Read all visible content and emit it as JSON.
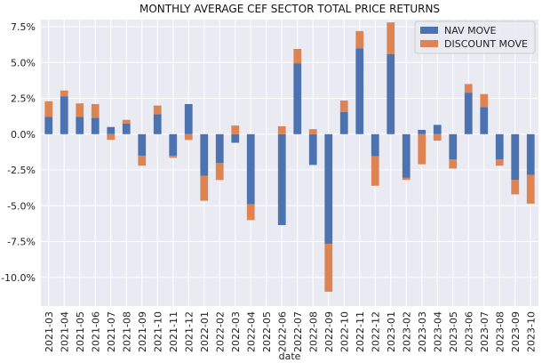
{
  "chart_data": {
    "type": "bar",
    "stacked": true,
    "title": "MONTHLY AVERAGE CEF SECTOR TOTAL PRICE RETURNS",
    "xlabel": "date",
    "ylabel": "",
    "ylim": [
      -12.0,
      8.0
    ],
    "yticks": [
      7.5,
      5.0,
      2.5,
      0.0,
      -2.5,
      -5.0,
      -7.5,
      -10.0
    ],
    "ytick_labels": [
      "7.5%",
      "5.0%",
      "2.5%",
      "0.0%",
      "-2.5%",
      "-5.0%",
      "-7.5%",
      "-10.0%"
    ],
    "grid": true,
    "legend_position": "top-right",
    "categories": [
      "2021-03",
      "2021-04",
      "2021-05",
      "2021-06",
      "2021-07",
      "2021-08",
      "2021-09",
      "2021-10",
      "2021-11",
      "2021-12",
      "2022-01",
      "2022-02",
      "2022-03",
      "2022-04",
      "2022-05",
      "2022-06",
      "2022-07",
      "2022-08",
      "2022-09",
      "2022-10",
      "2022-11",
      "2022-12",
      "2023-01",
      "2023-02",
      "2023-03",
      "2023-04",
      "2023-05",
      "2023-06",
      "2023-07",
      "2023-08",
      "2023-09",
      "2023-10"
    ],
    "series": [
      {
        "name": "NAV MOVE",
        "color": "#4c72b0",
        "values": [
          1.2,
          2.65,
          1.2,
          1.15,
          0.5,
          0.75,
          -1.5,
          1.4,
          -1.5,
          2.1,
          -2.9,
          -2.0,
          -0.6,
          -4.9,
          0.0,
          -6.35,
          4.95,
          -2.15,
          -7.65,
          1.55,
          6.0,
          -1.55,
          5.6,
          -3.05,
          0.3,
          0.65,
          -1.75,
          2.9,
          1.9,
          -1.75,
          -3.2,
          -2.85
        ]
      },
      {
        "name": "DISCOUNT MOVE",
        "color": "#dd8452",
        "values": [
          1.1,
          0.4,
          0.95,
          0.95,
          -0.4,
          0.25,
          -0.7,
          0.6,
          -0.15,
          -0.4,
          -1.75,
          -1.2,
          0.6,
          -1.1,
          0.0,
          0.55,
          1.0,
          0.35,
          -3.35,
          0.8,
          1.2,
          -2.05,
          2.2,
          -0.15,
          -2.1,
          -0.45,
          -0.65,
          0.6,
          0.9,
          -0.45,
          -1.0,
          -2.0
        ]
      }
    ]
  }
}
